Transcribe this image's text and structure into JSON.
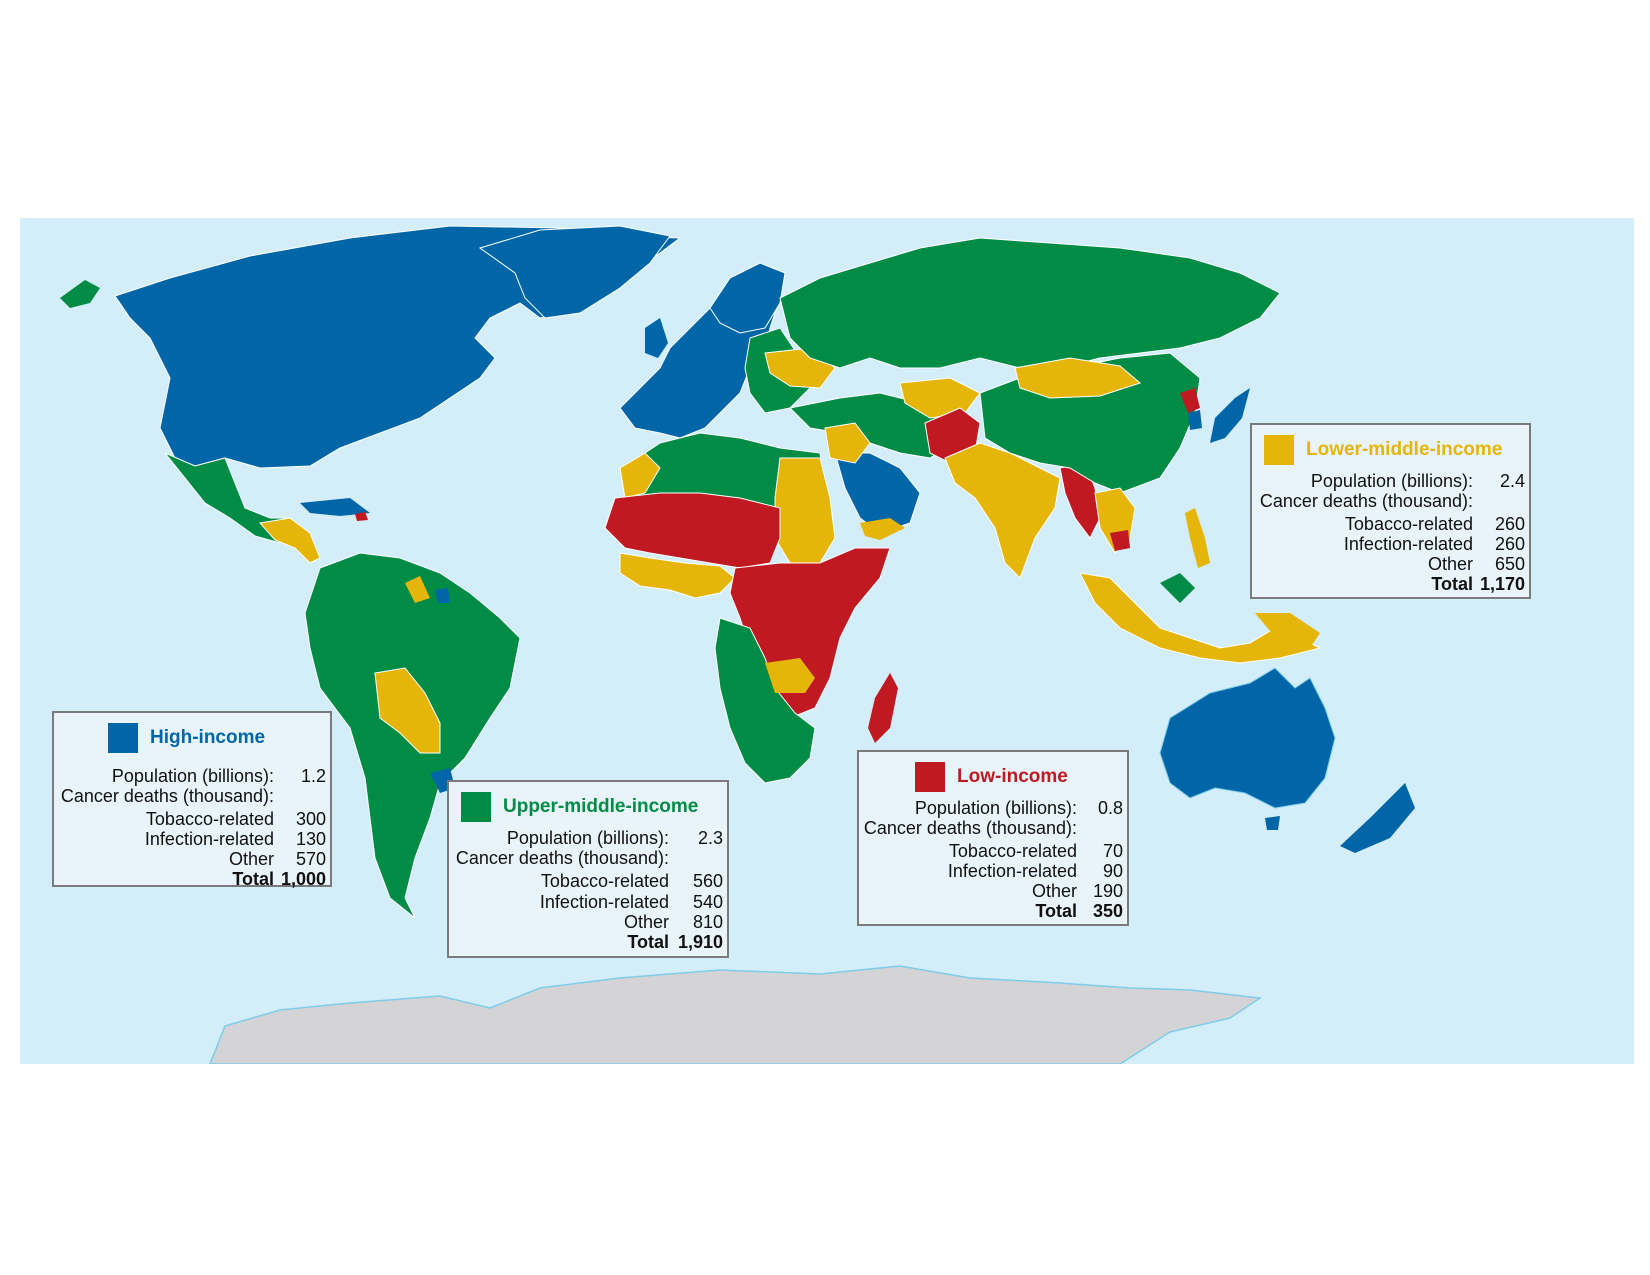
{
  "colors": {
    "ocean": "#d3edf9",
    "antarctica": "#d4d4d6",
    "high": "#0066a8",
    "upper_middle": "#008c44",
    "lower_middle": "#e6b50a",
    "low": "#c11922",
    "border": "#ffffff",
    "coast": "#7fcce8"
  },
  "legends": {
    "high": {
      "title": "High-income",
      "population_label": "Population (billions):",
      "population": "1.2",
      "deaths_label": "Cancer deaths (thousand):",
      "tobacco_label": "Tobacco-related",
      "tobacco": "300",
      "infection_label": "Infection-related",
      "infection": "130",
      "other_label": "Other",
      "other": "570",
      "total_label": "Total",
      "total": "1,000"
    },
    "upper_middle": {
      "title": "Upper-middle-income",
      "population_label": "Population (billions):",
      "population": "2.3",
      "deaths_label": "Cancer deaths (thousand):",
      "tobacco_label": "Tobacco-related",
      "tobacco": "560",
      "infection_label": "Infection-related",
      "infection": "540",
      "other_label": "Other",
      "other": "810",
      "total_label": "Total",
      "total": "1,910"
    },
    "low": {
      "title": "Low-income",
      "population_label": "Population (billions):",
      "population": "0.8",
      "deaths_label": "Cancer deaths (thousand):",
      "tobacco_label": "Tobacco-related",
      "tobacco": "70",
      "infection_label": "Infection-related",
      "infection": "90",
      "other_label": "Other",
      "other": "190",
      "total_label": "Total",
      "total": "350"
    },
    "lower_middle": {
      "title": "Lower-middle-income",
      "population_label": "Population (billions):",
      "population": "2.4",
      "deaths_label": "Cancer deaths (thousand):",
      "tobacco_label": "Tobacco-related",
      "tobacco": "260",
      "infection_label": "Infection-related",
      "infection": "260",
      "other_label": "Other",
      "other": "650",
      "total_label": "Total",
      "total": "1,170"
    }
  }
}
